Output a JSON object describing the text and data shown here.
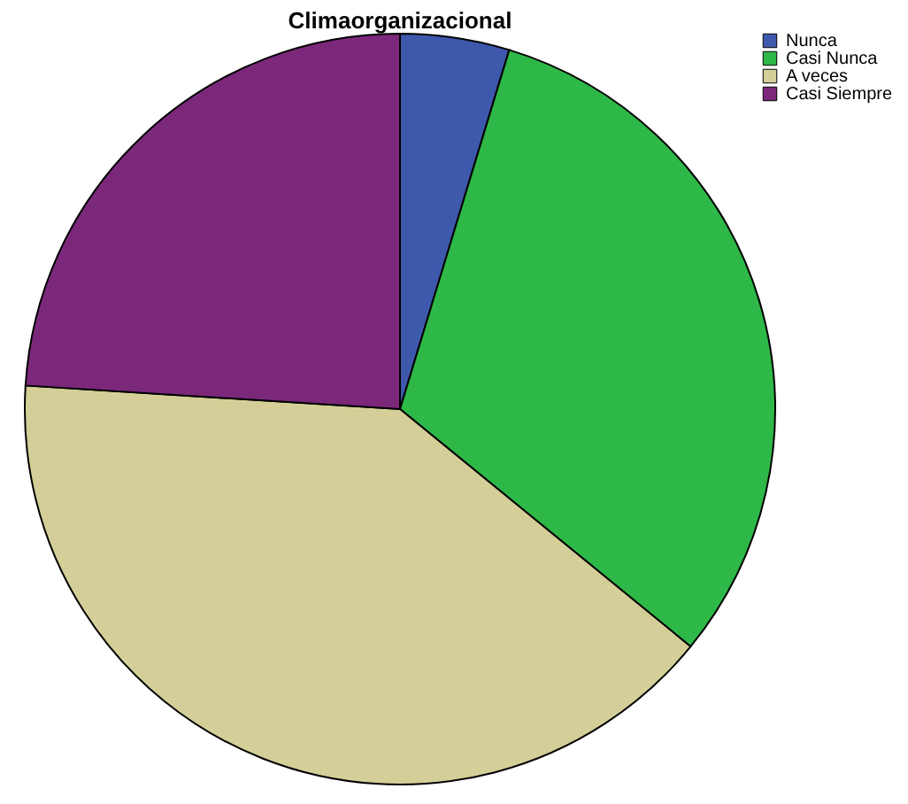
{
  "chart_data": {
    "type": "pie",
    "title": "Climaorganizacional",
    "categories": [
      "Nunca",
      "Casi Nunca",
      "A veces",
      "Casi Siempre"
    ],
    "values": [
      4.7,
      31.2,
      40.1,
      24.0
    ],
    "colors": [
      "#3e58ac",
      "#2eb848",
      "#d4cf98",
      "#7b287a"
    ],
    "legend": "top right"
  }
}
